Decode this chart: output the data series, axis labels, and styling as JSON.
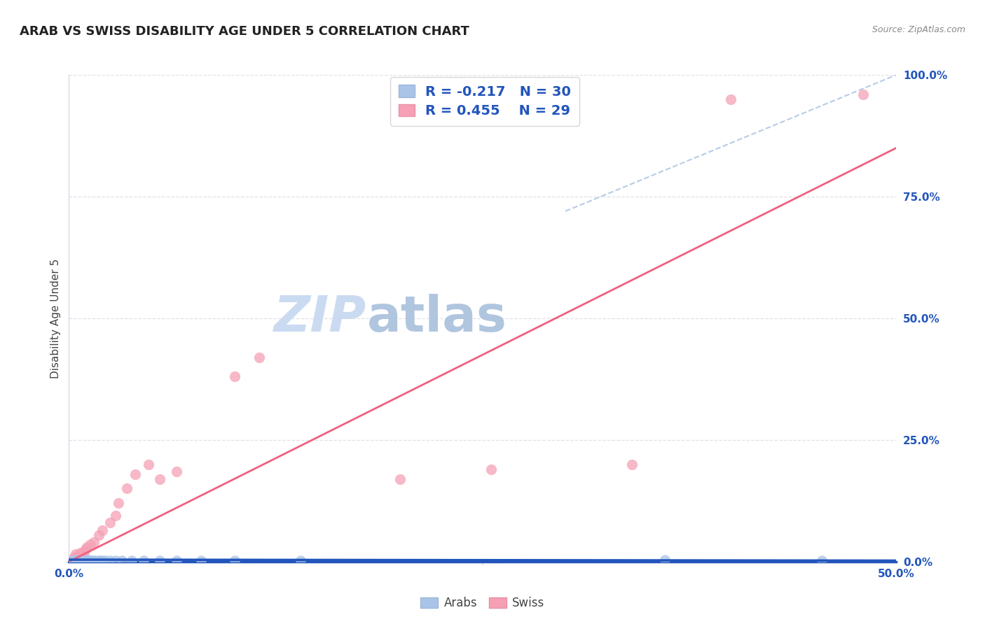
{
  "title": "ARAB VS SWISS DISABILITY AGE UNDER 5 CORRELATION CHART",
  "source": "Source: ZipAtlas.com",
  "ylabel": "Disability Age Under 5",
  "right_yticks": [
    "0.0%",
    "25.0%",
    "50.0%",
    "75.0%",
    "100.0%"
  ],
  "right_ytick_vals": [
    0.0,
    0.25,
    0.5,
    0.75,
    1.0
  ],
  "xlim": [
    0.0,
    0.5
  ],
  "ylim": [
    0.0,
    1.0
  ],
  "arab_R": -0.217,
  "arab_N": 30,
  "swiss_R": 0.455,
  "swiss_N": 29,
  "arab_color": "#aac4e8",
  "swiss_color": "#f5a0b5",
  "arab_line_color": "#2255bb",
  "swiss_line_color": "#f06080",
  "dashed_line_color": "#b8cce4",
  "watermark_zip": "ZIP",
  "watermark_atlas": "atlas",
  "watermark_color_zip": "#c5d8f0",
  "watermark_color_atlas": "#a0b8d8",
  "grid_color": "#e0e0ea",
  "bg_color": "#ffffff",
  "title_fontsize": 13,
  "label_fontsize": 11,
  "tick_fontsize": 11,
  "legend_fontsize": 14,
  "arab_scatter_x": [
    0.002,
    0.003,
    0.004,
    0.005,
    0.006,
    0.007,
    0.008,
    0.009,
    0.01,
    0.011,
    0.012,
    0.013,
    0.015,
    0.016,
    0.018,
    0.019,
    0.02,
    0.022,
    0.025,
    0.028,
    0.032,
    0.038,
    0.045,
    0.055,
    0.065,
    0.08,
    0.1,
    0.14,
    0.36,
    0.455
  ],
  "arab_scatter_y": [
    0.002,
    0.003,
    0.002,
    0.004,
    0.003,
    0.002,
    0.004,
    0.003,
    0.003,
    0.002,
    0.004,
    0.003,
    0.003,
    0.002,
    0.003,
    0.002,
    0.003,
    0.002,
    0.003,
    0.002,
    0.003,
    0.002,
    0.003,
    0.002,
    0.002,
    0.002,
    0.002,
    0.002,
    0.004,
    0.003
  ],
  "swiss_scatter_x": [
    0.002,
    0.003,
    0.004,
    0.005,
    0.006,
    0.007,
    0.008,
    0.009,
    0.01,
    0.011,
    0.013,
    0.015,
    0.018,
    0.02,
    0.025,
    0.028,
    0.03,
    0.035,
    0.04,
    0.048,
    0.055,
    0.065,
    0.1,
    0.115,
    0.2,
    0.255,
    0.34,
    0.4,
    0.48
  ],
  "swiss_scatter_y": [
    0.003,
    0.01,
    0.015,
    0.008,
    0.012,
    0.018,
    0.015,
    0.02,
    0.025,
    0.03,
    0.035,
    0.04,
    0.055,
    0.065,
    0.08,
    0.095,
    0.12,
    0.15,
    0.18,
    0.2,
    0.17,
    0.185,
    0.38,
    0.42,
    0.17,
    0.19,
    0.2,
    0.95,
    0.96
  ],
  "swiss_line_x": [
    0.0,
    0.5
  ],
  "swiss_line_y": [
    0.0,
    0.85
  ],
  "arab_line_x": [
    0.0,
    0.5
  ],
  "arab_line_y": [
    0.004,
    0.002
  ],
  "dash_line_x": [
    0.3,
    0.5
  ],
  "dash_line_y": [
    0.72,
    1.0
  ]
}
